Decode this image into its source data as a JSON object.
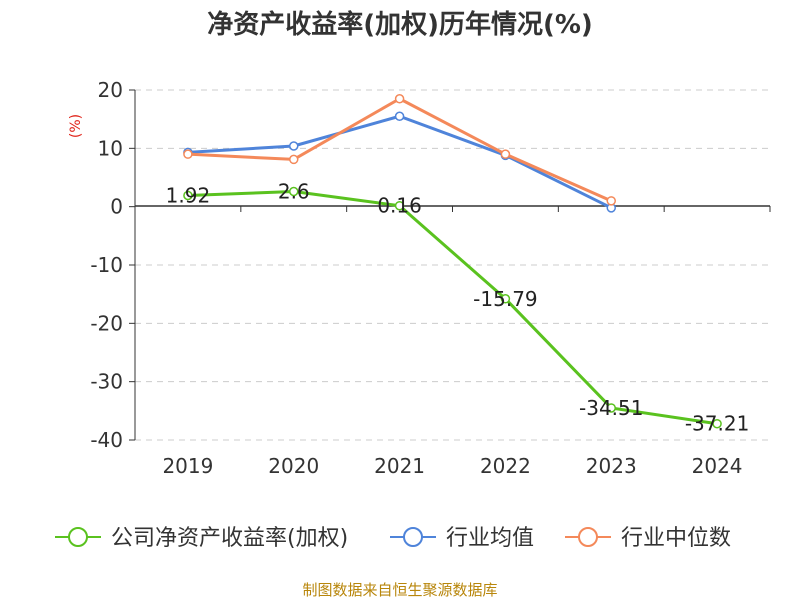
{
  "chart_data": {
    "type": "line",
    "title": "净资产收益率(加权)历年情况(%)",
    "ylabel": "(%)",
    "xlabel": "",
    "categories": [
      "2019",
      "2020",
      "2021",
      "2022",
      "2023",
      "2024"
    ],
    "ylim": [
      -40,
      20
    ],
    "yticks": [
      20,
      10,
      0,
      -10,
      -20,
      -30,
      -40
    ],
    "grid": true,
    "legend_position": "bottom",
    "series": [
      {
        "name": "公司净资产收益率(加权)",
        "color": "#5ac21f",
        "values": [
          1.92,
          2.6,
          0.16,
          -15.79,
          -34.51,
          -37.21
        ],
        "labels": [
          "1.92",
          "2.6",
          "0.16",
          "-15.79",
          "-34.51",
          "-37.21"
        ]
      },
      {
        "name": "行业均值",
        "color": "#4f84da",
        "values": [
          9.3,
          10.4,
          15.5,
          8.8,
          -0.2,
          null
        ]
      },
      {
        "name": "行业中位数",
        "color": "#f4895a",
        "values": [
          9.0,
          8.1,
          18.5,
          9.0,
          1.0,
          null
        ]
      }
    ]
  },
  "source": "制图数据来自恒生聚源数据库",
  "colors": {
    "title": "#333333",
    "axis_text": "#333333",
    "ylabel": "#e0241a",
    "grid": "#cccccc",
    "axis": "#333333",
    "source": "#b8860b"
  }
}
